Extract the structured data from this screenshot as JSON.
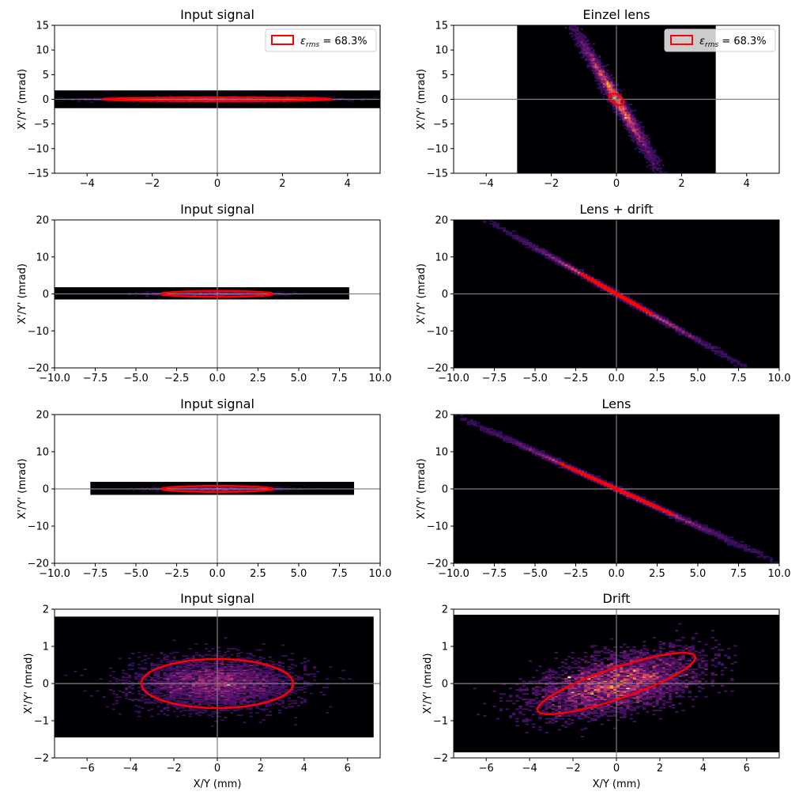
{
  "colors": {
    "background": "#000004",
    "ellipse": "#ff0000",
    "axis_line": "#808080",
    "heat_low": "#3b0f70",
    "heat_mid": "#b63679",
    "heat_high": "#fcfdbf"
  },
  "chart_data": [
    {
      "type": "heatmap",
      "title": "Input signal",
      "xlabel": "",
      "ylabel": "X'/Y' (mrad)",
      "xlim": [
        -5,
        5
      ],
      "ylim": [
        -15,
        15
      ],
      "xticks": [
        -4,
        -2,
        0,
        2,
        4
      ],
      "xticklabels": [
        "−4",
        "−2",
        "0",
        "2",
        "4"
      ],
      "yticks": [
        -15,
        -10,
        -5,
        0,
        5,
        10,
        15
      ],
      "yticklabels": [
        "−15",
        "−10",
        "−5",
        "0",
        "5",
        "10",
        "15"
      ],
      "histogram_extent": {
        "x": [
          -5,
          5
        ],
        "y": [
          -1.8,
          1.8
        ]
      },
      "distribution": {
        "sx": 1.6,
        "sy": 0.25,
        "corr": 0.0
      },
      "ellipse": {
        "cx": 0,
        "cy": 0,
        "a": 3.5,
        "b": 0.35,
        "slope": 0.0
      },
      "legend": {
        "show": true,
        "label": "ε",
        "subscript": "rms",
        "value": " = 68.3%",
        "loc": "upper right"
      }
    },
    {
      "type": "heatmap",
      "title": "Einzel lens",
      "xlabel": "",
      "ylabel": "X'/Y' (mrad)",
      "xlim": [
        -5,
        5
      ],
      "ylim": [
        -15,
        15
      ],
      "xticks": [
        -4,
        -2,
        0,
        2,
        4
      ],
      "xticklabels": [
        "−4",
        "−2",
        "0",
        "2",
        "4"
      ],
      "yticks": [
        -15,
        -10,
        -5,
        0,
        5,
        10,
        15
      ],
      "yticklabels": [
        "−15",
        "−10",
        "−5",
        "0",
        "5",
        "10",
        "15"
      ],
      "histogram_extent": {
        "x": [
          -3.05,
          3.05
        ],
        "y": [
          -15,
          15
        ]
      },
      "distribution": {
        "sx": 0.6,
        "sy": 6.5,
        "corr": -0.985
      },
      "ellipse": {
        "cx": 0,
        "cy": 0,
        "a": 1.2,
        "b": 0.2,
        "slope": -10.8
      },
      "legend": {
        "show": true,
        "label": "ε",
        "subscript": "rms",
        "value": " = 68.3%",
        "loc": "upper right"
      }
    },
    {
      "type": "heatmap",
      "title": "Input signal",
      "xlabel": "",
      "ylabel": "X'/Y' (mrad)",
      "xlim": [
        -10,
        10
      ],
      "ylim": [
        -20,
        20
      ],
      "xticks": [
        -10,
        -7.5,
        -5,
        -2.5,
        0,
        2.5,
        5,
        7.5,
        10
      ],
      "xticklabels": [
        "−10.0",
        "−7.5",
        "−5.0",
        "−2.5",
        "0.0",
        "2.5",
        "5.0",
        "7.5",
        "10.0"
      ],
      "yticks": [
        -20,
        -10,
        0,
        10,
        20
      ],
      "yticklabels": [
        "−20",
        "−10",
        "0",
        "10",
        "20"
      ],
      "histogram_extent": {
        "x": [
          -10,
          8.1
        ],
        "y": [
          -1.5,
          1.8
        ]
      },
      "distribution": {
        "sx": 1.7,
        "sy": 0.3,
        "corr": 0.0
      },
      "ellipse": {
        "cx": 0,
        "cy": 0,
        "a": 3.4,
        "b": 0.8,
        "slope": 0.0
      },
      "legend": {
        "show": false
      }
    },
    {
      "type": "heatmap",
      "title": "Lens + drift",
      "xlabel": "",
      "ylabel": "X'/Y' (mrad)",
      "xlim": [
        -10,
        10
      ],
      "ylim": [
        -20,
        20
      ],
      "xticks": [
        -10,
        -7.5,
        -5,
        -2.5,
        0,
        2.5,
        5,
        7.5,
        10
      ],
      "xticklabels": [
        "−10.0",
        "−7.5",
        "−5.0",
        "−2.5",
        "0.0",
        "2.5",
        "5.0",
        "7.5",
        "10.0"
      ],
      "yticks": [
        -20,
        -10,
        0,
        10,
        20
      ],
      "yticklabels": [
        "−20",
        "−10",
        "0",
        "10",
        "20"
      ],
      "histogram_extent": {
        "x": [
          -10,
          10
        ],
        "y": [
          -20,
          20
        ]
      },
      "distribution": {
        "sx": 3.0,
        "sy": 7.5,
        "corr": -0.999
      },
      "ellipse": {
        "cx": 0,
        "cy": 0,
        "a": 5.9,
        "b": 0.12,
        "slope": -2.5
      },
      "legend": {
        "show": false
      }
    },
    {
      "type": "heatmap",
      "title": "Input signal",
      "xlabel": "",
      "ylabel": "X'/Y' (mrad)",
      "xlim": [
        -10,
        10
      ],
      "ylim": [
        -20,
        20
      ],
      "xticks": [
        -10,
        -7.5,
        -5,
        -2.5,
        0,
        2.5,
        5,
        7.5,
        10
      ],
      "xticklabels": [
        "−10.0",
        "−7.5",
        "−5.0",
        "−2.5",
        "0.0",
        "2.5",
        "5.0",
        "7.5",
        "10.0"
      ],
      "yticks": [
        -20,
        -10,
        0,
        10,
        20
      ],
      "yticklabels": [
        "−20",
        "−10",
        "0",
        "10",
        "20"
      ],
      "histogram_extent": {
        "x": [
          -7.8,
          8.4
        ],
        "y": [
          -1.6,
          1.9
        ]
      },
      "distribution": {
        "sx": 1.7,
        "sy": 0.3,
        "corr": 0.0
      },
      "ellipse": {
        "cx": 0,
        "cy": 0,
        "a": 3.4,
        "b": 0.8,
        "slope": 0.0
      },
      "legend": {
        "show": false
      }
    },
    {
      "type": "heatmap",
      "title": "Lens",
      "xlabel": "",
      "ylabel": "X'/Y' (mrad)",
      "xlim": [
        -10,
        10
      ],
      "ylim": [
        -20,
        20
      ],
      "xticks": [
        -10,
        -7.5,
        -5,
        -2.5,
        0,
        2.5,
        5,
        7.5,
        10
      ],
      "xticklabels": [
        "−10.0",
        "−7.5",
        "−5.0",
        "−2.5",
        "0.0",
        "2.5",
        "5.0",
        "7.5",
        "10.0"
      ],
      "yticks": [
        -20,
        -10,
        0,
        10,
        20
      ],
      "yticklabels": [
        "−20",
        "−10",
        "0",
        "10",
        "20"
      ],
      "histogram_extent": {
        "x": [
          -10,
          10
        ],
        "y": [
          -20,
          20
        ]
      },
      "distribution": {
        "sx": 3.9,
        "sy": 7.8,
        "corr": -0.999
      },
      "ellipse": {
        "cx": 0,
        "cy": 0,
        "a": 7.7,
        "b": 0.1,
        "slope": -1.97
      },
      "legend": {
        "show": false
      }
    },
    {
      "type": "heatmap",
      "title": "Input signal",
      "xlabel": "X/Y (mm)",
      "ylabel": "X'/Y' (mrad)",
      "xlim": [
        -7.5,
        7.5
      ],
      "ylim": [
        -2,
        2
      ],
      "xticks": [
        -6,
        -4,
        -2,
        0,
        2,
        4,
        6
      ],
      "xticklabels": [
        "−6",
        "−4",
        "−2",
        "0",
        "2",
        "4",
        "6"
      ],
      "yticks": [
        -2,
        -1,
        0,
        1,
        2
      ],
      "yticklabels": [
        "−2",
        "−1",
        "0",
        "1",
        "2"
      ],
      "histogram_extent": {
        "x": [
          -7.5,
          7.2
        ],
        "y": [
          -1.45,
          1.8
        ]
      },
      "distribution": {
        "sx": 1.8,
        "sy": 0.34,
        "corr": 0.0
      },
      "ellipse": {
        "cx": 0,
        "cy": 0,
        "a": 3.5,
        "b": 0.66,
        "slope": 0.0
      },
      "legend": {
        "show": false
      }
    },
    {
      "type": "heatmap",
      "title": "Drift",
      "xlabel": "X/Y (mm)",
      "ylabel": "X'/Y' (mrad)",
      "xlim": [
        -7.5,
        7.5
      ],
      "ylim": [
        -2,
        2
      ],
      "xticks": [
        -6,
        -4,
        -2,
        0,
        2,
        4,
        6
      ],
      "xticklabels": [
        "−6",
        "−4",
        "−2",
        "0",
        "2",
        "4",
        "6"
      ],
      "yticks": [
        -2,
        -1,
        0,
        1,
        2
      ],
      "yticklabels": [
        "−2",
        "−1",
        "0",
        "1",
        "2"
      ],
      "histogram_extent": {
        "x": [
          -7.5,
          7.5
        ],
        "y": [
          -1.85,
          1.85
        ]
      },
      "distribution": {
        "sx": 1.9,
        "sy": 0.42,
        "corr": 0.45
      },
      "ellipse": {
        "cx": 0,
        "cy": 0,
        "a": 3.7,
        "b": 0.43,
        "slope": 0.195
      },
      "legend": {
        "show": false
      }
    }
  ]
}
